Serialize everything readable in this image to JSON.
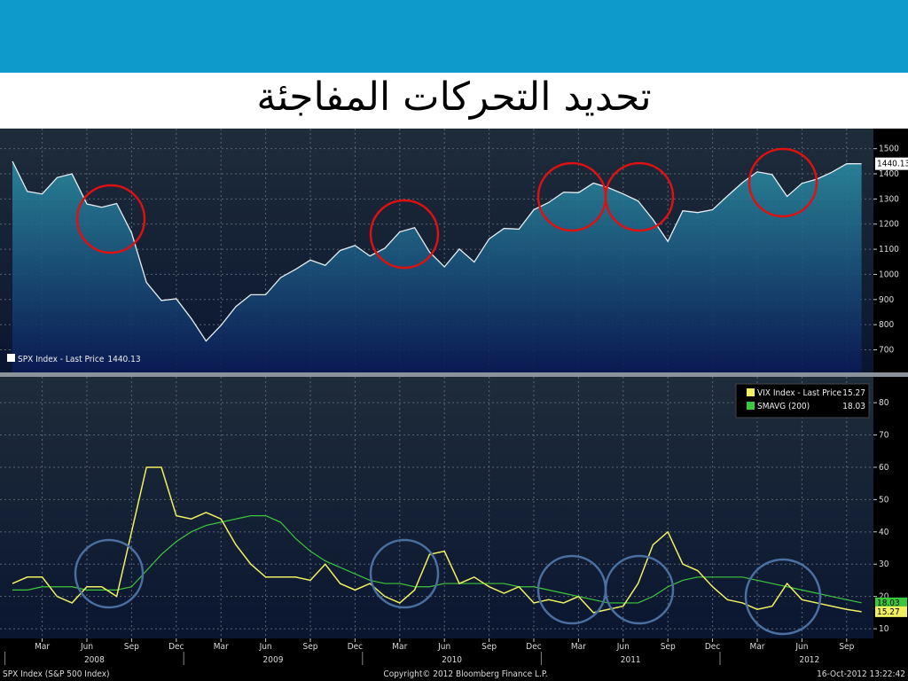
{
  "slide_title": "تحديد التحركات المفاجئة",
  "footer": {
    "left": "SPX Index (S&P 500 Index)",
    "center": "Copyright© 2012 Bloomberg Finance L.P.",
    "right": "16-Oct-2012 13:22:42"
  },
  "chart_data": [
    {
      "type": "area",
      "legend": "SPX Index - Last Price",
      "x": [
        "2008-01",
        "2008-02",
        "2008-03",
        "2008-04",
        "2008-05",
        "2008-06",
        "2008-07",
        "2008-08",
        "2008-09",
        "2008-10",
        "2008-11",
        "2008-12",
        "2009-01",
        "2009-02",
        "2009-03",
        "2009-04",
        "2009-05",
        "2009-06",
        "2009-07",
        "2009-08",
        "2009-09",
        "2009-10",
        "2009-11",
        "2009-12",
        "2010-01",
        "2010-02",
        "2010-03",
        "2010-04",
        "2010-05",
        "2010-06",
        "2010-07",
        "2010-08",
        "2010-09",
        "2010-10",
        "2010-11",
        "2010-12",
        "2011-01",
        "2011-02",
        "2011-03",
        "2011-04",
        "2011-05",
        "2011-06",
        "2011-07",
        "2011-08",
        "2011-09",
        "2011-10",
        "2011-11",
        "2011-12",
        "2012-01",
        "2012-02",
        "2012-03",
        "2012-04",
        "2012-05",
        "2012-06",
        "2012-07",
        "2012-08",
        "2012-09",
        "2012-10"
      ],
      "series": [
        {
          "name": "SPX Index",
          "color": "#e6eef5",
          "values": [
            1450,
            1330,
            1320,
            1385,
            1400,
            1280,
            1267,
            1282,
            1165,
            968,
            896,
            903,
            825,
            735,
            797,
            872,
            919,
            919,
            987,
            1020,
            1057,
            1036,
            1095,
            1115,
            1073,
            1104,
            1169,
            1186,
            1089,
            1030,
            1101,
            1049,
            1141,
            1183,
            1180,
            1257,
            1286,
            1327,
            1325,
            1363,
            1345,
            1320,
            1292,
            1218,
            1131,
            1253,
            1246,
            1257,
            1312,
            1365,
            1408,
            1397,
            1310,
            1362,
            1379,
            1406,
            1440,
            1440.13
          ]
        }
      ],
      "ylim": [
        610,
        1580
      ],
      "yticks": [
        700,
        800,
        900,
        1000,
        1100,
        1200,
        1300,
        1400,
        1500
      ],
      "grid": true
    },
    {
      "type": "line",
      "legend_value_title": "VIX Index - Last Price",
      "x": [
        "2008-01",
        "2008-02",
        "2008-03",
        "2008-04",
        "2008-05",
        "2008-06",
        "2008-07",
        "2008-08",
        "2008-09",
        "2008-10",
        "2008-11",
        "2008-12",
        "2009-01",
        "2009-02",
        "2009-03",
        "2009-04",
        "2009-05",
        "2009-06",
        "2009-07",
        "2009-08",
        "2009-09",
        "2009-10",
        "2009-11",
        "2009-12",
        "2010-01",
        "2010-02",
        "2010-03",
        "2010-04",
        "2010-05",
        "2010-06",
        "2010-07",
        "2010-08",
        "2010-09",
        "2010-10",
        "2010-11",
        "2010-12",
        "2011-01",
        "2011-02",
        "2011-03",
        "2011-04",
        "2011-05",
        "2011-06",
        "2011-07",
        "2011-08",
        "2011-09",
        "2011-10",
        "2011-11",
        "2011-12",
        "2012-01",
        "2012-02",
        "2012-03",
        "2012-04",
        "2012-05",
        "2012-06",
        "2012-07",
        "2012-08",
        "2012-09",
        "2012-10"
      ],
      "series": [
        {
          "name": "VIX Index - Last Price",
          "color": "#f0f060",
          "values": [
            24,
            26,
            26,
            20,
            18,
            23,
            23,
            20,
            40,
            60,
            60,
            45,
            44,
            46,
            44,
            36,
            30,
            26,
            26,
            26,
            25,
            30,
            24,
            22,
            24,
            20,
            18,
            22,
            33,
            34,
            24,
            26,
            23,
            21,
            23,
            18,
            19,
            18,
            20,
            15,
            16,
            17,
            24,
            36,
            40,
            30,
            28,
            23,
            19,
            18,
            16,
            17,
            24,
            19,
            18,
            17,
            16,
            15.27
          ]
        },
        {
          "name": "SMAVG (200)",
          "color": "#3cc83c",
          "values": [
            22,
            22,
            23,
            23,
            23,
            22,
            22,
            22,
            23,
            28,
            33,
            37,
            40,
            42,
            43,
            44,
            45,
            45,
            43,
            38,
            34,
            31,
            29,
            27,
            25,
            24,
            24,
            23,
            23,
            24,
            24,
            24,
            24,
            24,
            23,
            23,
            22,
            21,
            20,
            19,
            18,
            18,
            18,
            20,
            23,
            25,
            26,
            26,
            26,
            26,
            25,
            24,
            23,
            22,
            21,
            20,
            19,
            18.03
          ]
        }
      ],
      "ylim": [
        7,
        88
      ],
      "yticks": [
        10,
        20,
        30,
        40,
        50,
        60,
        70,
        80
      ],
      "grid": true,
      "xticks": [
        {
          "value": "2008-03",
          "label": "Mar"
        },
        {
          "value": "2008-06",
          "label": "Jun"
        },
        {
          "value": "2008-09",
          "label": "Sep"
        },
        {
          "value": "2008-12",
          "label": "Dec"
        },
        {
          "value": "2009-03",
          "label": "Mar"
        },
        {
          "value": "2009-06",
          "label": "Jun"
        },
        {
          "value": "2009-09",
          "label": "Sep"
        },
        {
          "value": "2009-12",
          "label": "Dec"
        },
        {
          "value": "2010-03",
          "label": "Mar"
        },
        {
          "value": "2010-06",
          "label": "Jun"
        },
        {
          "value": "2010-09",
          "label": "Sep"
        },
        {
          "value": "2010-12",
          "label": "Dec"
        },
        {
          "value": "2011-03",
          "label": "Mar"
        },
        {
          "value": "2011-06",
          "label": "Jun"
        },
        {
          "value": "2011-09",
          "label": "Sep"
        },
        {
          "value": "2011-12",
          "label": "Dec"
        },
        {
          "value": "2012-03",
          "label": "Mar"
        },
        {
          "value": "2012-06",
          "label": "Jun"
        },
        {
          "value": "2012-09",
          "label": "Sep"
        }
      ],
      "years": [
        "2008",
        "2009",
        "2010",
        "2011",
        "2012"
      ]
    }
  ]
}
